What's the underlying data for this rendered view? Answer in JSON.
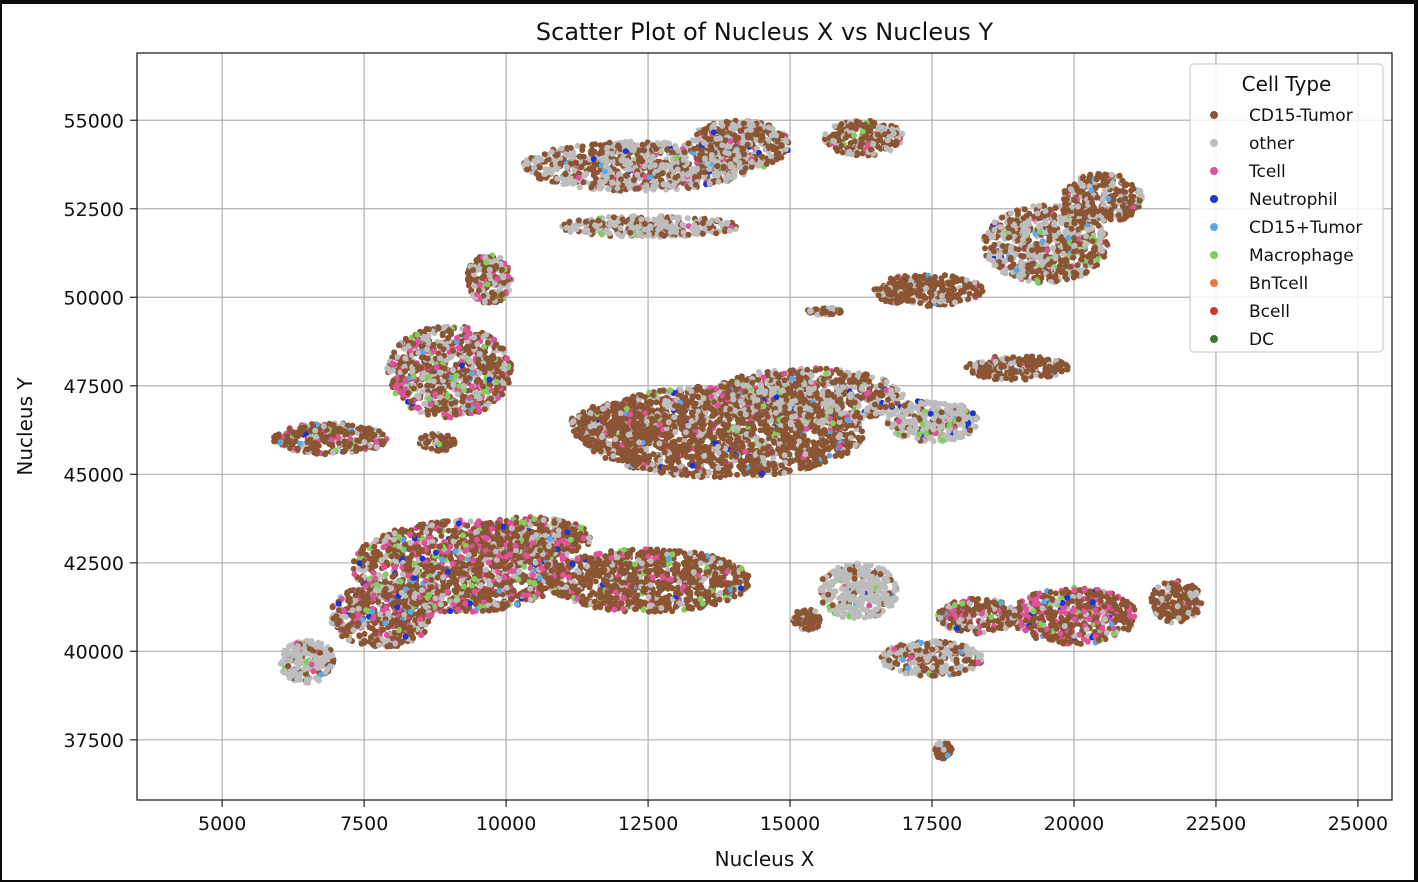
{
  "chart_data": {
    "type": "scatter",
    "title": "Scatter Plot of Nucleus X vs Nucleus Y",
    "xlabel": "Nucleus X",
    "ylabel": "Nucleus Y",
    "xlim": [
      3500,
      25600
    ],
    "ylim": [
      35800,
      56900
    ],
    "x_ticks": [
      5000,
      7500,
      10000,
      12500,
      15000,
      17500,
      20000,
      22500,
      25000
    ],
    "y_ticks": [
      37500,
      40000,
      42500,
      45000,
      47500,
      50000,
      52500,
      55000
    ],
    "grid": true,
    "legend": {
      "title": "Cell Type",
      "placement": "top-right"
    },
    "series": [
      {
        "name": "CD15-Tumor",
        "color": "#8b5533"
      },
      {
        "name": "other",
        "color": "#bdbdbd"
      },
      {
        "name": "Tcell",
        "color": "#e0519c"
      },
      {
        "name": "Neutrophil",
        "color": "#1b35d4"
      },
      {
        "name": "CD15+Tumor",
        "color": "#5aa9e6"
      },
      {
        "name": "Macrophage",
        "color": "#7fcf5a"
      },
      {
        "name": "BnTcell",
        "color": "#e87840"
      },
      {
        "name": "Bcell",
        "color": "#d03a2e"
      },
      {
        "name": "DC",
        "color": "#3a7a2c"
      }
    ],
    "clusters": [
      {
        "cx": 9200,
        "cy": 42400,
        "rx": 1900,
        "ry": 1300,
        "mix": [
          0.55,
          0.2,
          0.15,
          0.02,
          0.02,
          0.06
        ]
      },
      {
        "cx": 10400,
        "cy": 43200,
        "rx": 1100,
        "ry": 600,
        "mix": [
          0.6,
          0.15,
          0.18,
          0.01,
          0.01,
          0.05
        ]
      },
      {
        "cx": 12500,
        "cy": 42000,
        "rx": 1800,
        "ry": 900,
        "mix": [
          0.75,
          0.12,
          0.08,
          0.01,
          0.01,
          0.03
        ]
      },
      {
        "cx": 7800,
        "cy": 41000,
        "rx": 900,
        "ry": 900,
        "mix": [
          0.6,
          0.2,
          0.12,
          0.02,
          0.02,
          0.04
        ]
      },
      {
        "cx": 6500,
        "cy": 39700,
        "rx": 500,
        "ry": 600,
        "mix": [
          0.2,
          0.75,
          0.02,
          0.01,
          0.01,
          0.01
        ]
      },
      {
        "cx": 6900,
        "cy": 46000,
        "rx": 1000,
        "ry": 450,
        "mix": [
          0.6,
          0.2,
          0.12,
          0.01,
          0.02,
          0.05
        ]
      },
      {
        "cx": 9000,
        "cy": 47900,
        "rx": 1100,
        "ry": 1300,
        "mix": [
          0.45,
          0.3,
          0.15,
          0.01,
          0.02,
          0.07
        ]
      },
      {
        "cx": 9700,
        "cy": 50500,
        "rx": 400,
        "ry": 700,
        "mix": [
          0.4,
          0.35,
          0.15,
          0.02,
          0.02,
          0.06
        ]
      },
      {
        "cx": 8800,
        "cy": 45900,
        "rx": 350,
        "ry": 250,
        "mix": [
          0.7,
          0.2,
          0.05,
          0.01,
          0.01,
          0.03
        ]
      },
      {
        "cx": 13800,
        "cy": 46200,
        "rx": 2500,
        "ry": 1300,
        "mix": [
          0.75,
          0.17,
          0.04,
          0.01,
          0.01,
          0.02
        ]
      },
      {
        "cx": 12000,
        "cy": 46400,
        "rx": 900,
        "ry": 600,
        "mix": [
          0.72,
          0.18,
          0.05,
          0.01,
          0.01,
          0.03
        ]
      },
      {
        "cx": 15300,
        "cy": 47200,
        "rx": 1700,
        "ry": 800,
        "mix": [
          0.5,
          0.4,
          0.04,
          0.02,
          0.01,
          0.03
        ]
      },
      {
        "cx": 17500,
        "cy": 46500,
        "rx": 800,
        "ry": 600,
        "mix": [
          0.15,
          0.7,
          0.03,
          0.03,
          0.02,
          0.07
        ]
      },
      {
        "cx": 19000,
        "cy": 48000,
        "rx": 900,
        "ry": 350,
        "mix": [
          0.8,
          0.15,
          0.02,
          0.01,
          0.01,
          0.01
        ]
      },
      {
        "cx": 19500,
        "cy": 51500,
        "rx": 1100,
        "ry": 1100,
        "mix": [
          0.45,
          0.45,
          0.02,
          0.01,
          0.01,
          0.06
        ]
      },
      {
        "cx": 17400,
        "cy": 50200,
        "rx": 1000,
        "ry": 450,
        "mix": [
          0.8,
          0.15,
          0.02,
          0.01,
          0.01,
          0.01
        ]
      },
      {
        "cx": 20500,
        "cy": 52800,
        "rx": 700,
        "ry": 700,
        "mix": [
          0.7,
          0.25,
          0.02,
          0.01,
          0.01,
          0.01
        ]
      },
      {
        "cx": 12300,
        "cy": 53700,
        "rx": 2000,
        "ry": 700,
        "mix": [
          0.45,
          0.5,
          0.02,
          0.01,
          0.01,
          0.01
        ]
      },
      {
        "cx": 14100,
        "cy": 54300,
        "rx": 900,
        "ry": 700,
        "mix": [
          0.55,
          0.35,
          0.04,
          0.02,
          0.02,
          0.02
        ]
      },
      {
        "cx": 16300,
        "cy": 54500,
        "rx": 700,
        "ry": 500,
        "mix": [
          0.7,
          0.28,
          0.01,
          0.0,
          0.0,
          0.01
        ]
      },
      {
        "cx": 12500,
        "cy": 52000,
        "rx": 1600,
        "ry": 300,
        "mix": [
          0.3,
          0.68,
          0.01,
          0.0,
          0.0,
          0.01
        ]
      },
      {
        "cx": 20000,
        "cy": 41000,
        "rx": 1100,
        "ry": 800,
        "mix": [
          0.55,
          0.1,
          0.25,
          0.02,
          0.02,
          0.06
        ]
      },
      {
        "cx": 18300,
        "cy": 41000,
        "rx": 700,
        "ry": 500,
        "mix": [
          0.55,
          0.2,
          0.2,
          0.01,
          0.01,
          0.03
        ]
      },
      {
        "cx": 21800,
        "cy": 41400,
        "rx": 450,
        "ry": 600,
        "mix": [
          0.75,
          0.2,
          0.03,
          0.0,
          0.0,
          0.02
        ]
      },
      {
        "cx": 16200,
        "cy": 41700,
        "rx": 700,
        "ry": 800,
        "mix": [
          0.1,
          0.85,
          0.01,
          0.01,
          0.01,
          0.02
        ]
      },
      {
        "cx": 17500,
        "cy": 39800,
        "rx": 900,
        "ry": 500,
        "mix": [
          0.45,
          0.5,
          0.03,
          0.0,
          0.01,
          0.01
        ]
      },
      {
        "cx": 15300,
        "cy": 40900,
        "rx": 250,
        "ry": 300,
        "mix": [
          0.85,
          0.12,
          0.02,
          0.0,
          0.0,
          0.01
        ]
      },
      {
        "cx": 17700,
        "cy": 37200,
        "rx": 150,
        "ry": 250,
        "mix": [
          0.8,
          0.15,
          0.0,
          0.0,
          0.05,
          0.0
        ]
      },
      {
        "cx": 15600,
        "cy": 49600,
        "rx": 300,
        "ry": 100,
        "mix": [
          0.7,
          0.3,
          0.0,
          0.0,
          0.0,
          0.0
        ]
      }
    ]
  }
}
